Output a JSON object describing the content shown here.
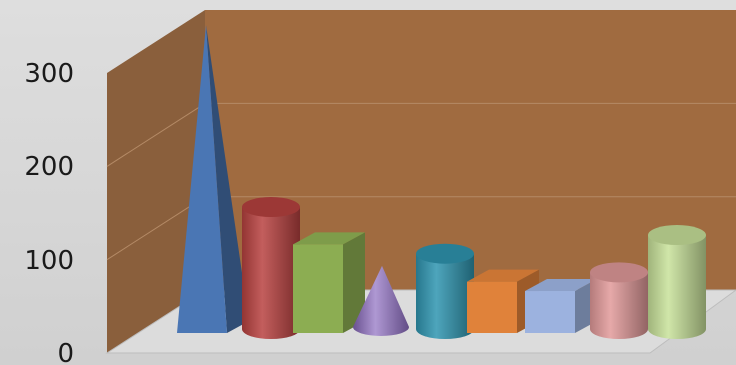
{
  "chart_data": {
    "type": "bar",
    "variant": "3d-shapes",
    "title": "",
    "xlabel": "",
    "ylabel": "",
    "ylim": [
      0,
      300
    ],
    "yticks": [
      "0",
      "100",
      "200",
      "300"
    ],
    "grid": true,
    "legend": "none",
    "colors": {
      "back_wall": "#a06b40",
      "side_wall": "#8a5f3c",
      "floor": "#dcdcdc",
      "gridline": "#b48a66"
    },
    "series": [
      {
        "values": [
          330,
          135,
          95,
          72,
          85,
          55,
          45,
          65,
          105
        ]
      }
    ],
    "series_shapes": [
      "pyramid",
      "cylinder",
      "box",
      "cone",
      "cylinder",
      "box",
      "box",
      "cylinder",
      "cylinder"
    ],
    "series_colors": [
      "#4a76b4",
      "#b84240",
      "#8cad52",
      "#8c6cc0",
      "#2f95b0",
      "#e0823a",
      "#9cb2df",
      "#e19a9a",
      "#c8e19a"
    ]
  }
}
